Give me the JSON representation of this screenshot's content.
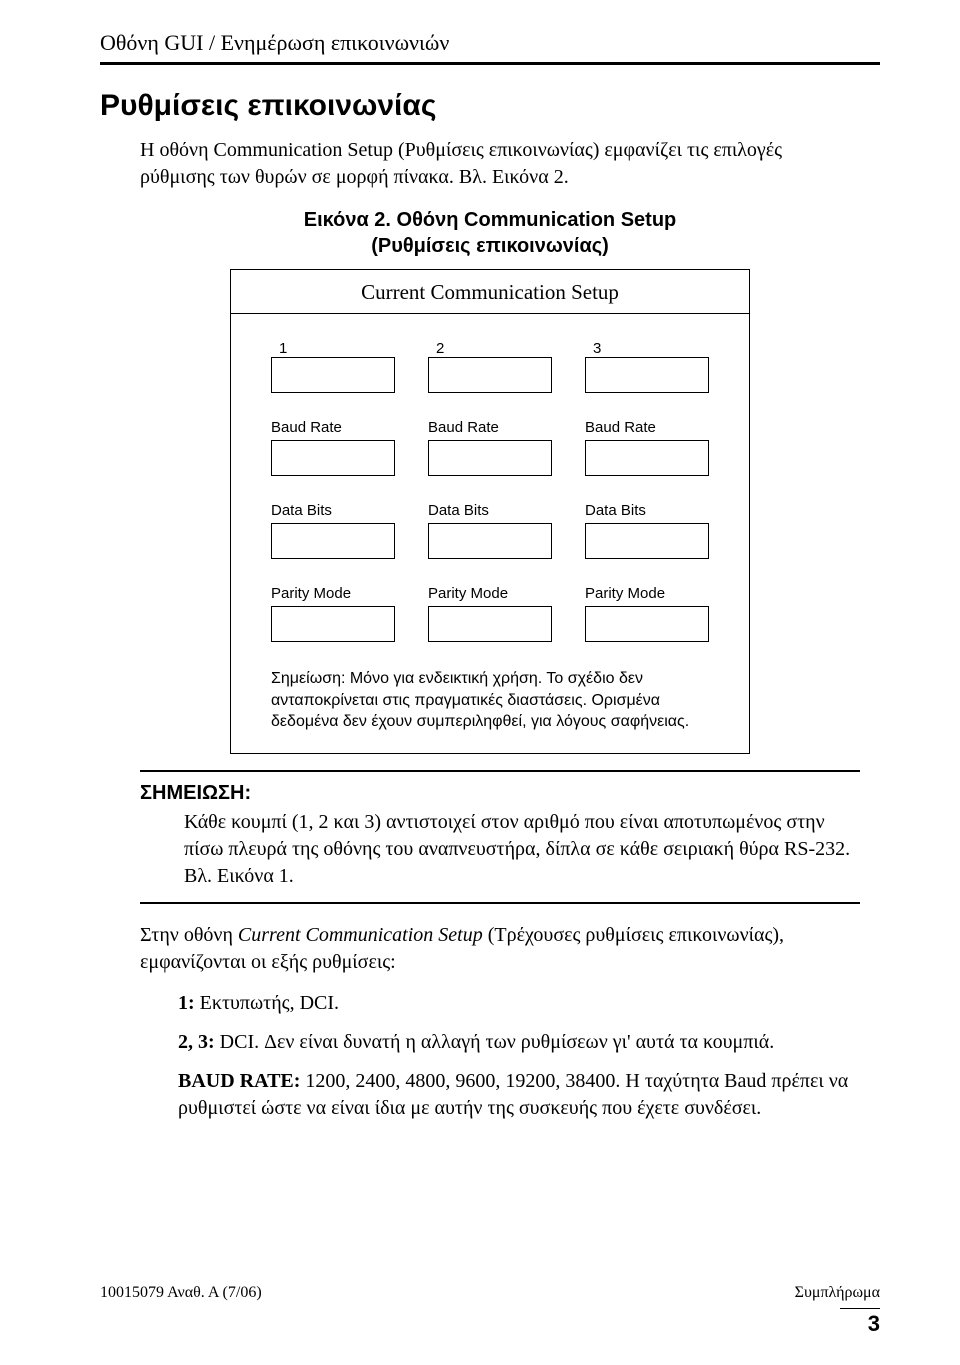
{
  "header": "Οθόνη GUI / Ενημέρωση επικοινωνιών",
  "section_title": "Ρυθμίσεις επικοινωνίας",
  "intro": "Η οθόνη Communication Setup (Ρυθμίσεις επικοινωνίας) εμφανίζει τις επιλογές ρύθμισης των θυρών σε μορφή πίνακα. Βλ. Εικόνα 2.",
  "figure": {
    "caption_line1": "Εικόνα 2.  Οθόνη Communication Setup",
    "caption_line2": "(Ρυθμίσεις επικοινωνίας)",
    "panel_title": "Current Communication Setup",
    "columns": [
      "1",
      "2",
      "3"
    ],
    "row_labels": {
      "baud": "Baud Rate",
      "data": "Data Bits",
      "parity": "Parity Mode"
    },
    "note": "Σημείωση: Μόνο για ενδεικτική χρήση. Το σχέδιο δεν ανταποκρίνεται στις πραγματικές διαστάσεις. Ορισμένα δεδομένα δεν έχουν συμπεριληφθεί, για λόγους σαφήνειας."
  },
  "note_block": {
    "heading": "ΣΗΜΕΙΩΣΗ:",
    "body": "Κάθε κουμπί (1, 2 και 3) αντιστοιχεί στον αριθμό που είναι αποτυπωμένος στην πίσω πλευρά της οθόνης του αναπνευστήρα, δίπλα σε κάθε σειριακή θύρα RS-232. Βλ. Εικόνα 1."
  },
  "body": {
    "para": "Στην οθόνη Current Communication Setup (Τρέχουσες ρυθμίσεις επικοινωνίας), εμφανίζονται οι εξής ρυθμίσεις:",
    "item1_bold": "1:",
    "item1_rest": " Εκτυπωτής, DCI.",
    "item2_bold": "2, 3:",
    "item2_rest": " DCI. Δεν είναι δυνατή η αλλαγή των ρυθμίσεων γι' αυτά τα κουμπιά.",
    "item3_bold": "BAUD RATE:",
    "item3_rest": " 1200, 2400, 4800, 9600, 19200, 38400. Η ταχύτητα Baud πρέπει να ρυθμιστεί ώστε να είναι ίδια με αυτήν της συσκευής που έχετε συνδέσει."
  },
  "footer": {
    "left": "10015079 Αναθ. Α (7/06)",
    "right": "Συμπλήρωμα",
    "page": "3"
  }
}
